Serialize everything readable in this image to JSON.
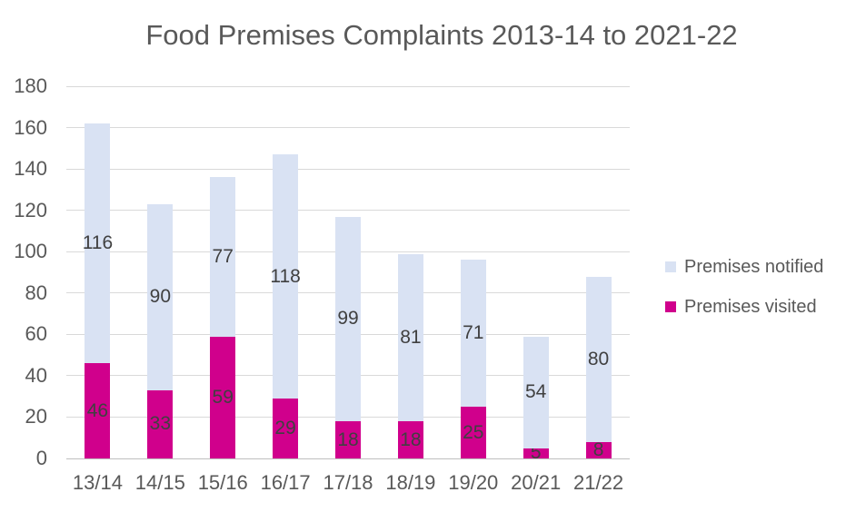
{
  "title": "Food Premises Complaints 2013-14 to 2021-22",
  "chart_data": {
    "type": "bar",
    "stacked": true,
    "title": "Food Premises Complaints 2013-14 to 2021-22",
    "categories": [
      "13/14",
      "14/15",
      "15/16",
      "16/17",
      "17/18",
      "18/19",
      "19/20",
      "20/21",
      "21/22"
    ],
    "series": [
      {
        "name": "Premises visited",
        "color": "#d0008c",
        "values": [
          46,
          33,
          59,
          29,
          18,
          18,
          25,
          5,
          8
        ]
      },
      {
        "name": "Premises notified",
        "color": "#d9e2f3",
        "values": [
          116,
          90,
          77,
          118,
          99,
          81,
          71,
          54,
          80
        ]
      }
    ],
    "ylim": [
      0,
      180
    ],
    "yticks": [
      0,
      20,
      40,
      60,
      80,
      100,
      120,
      140,
      160,
      180
    ],
    "xlabel": "",
    "ylabel": "",
    "grid": "horizontal",
    "data_labels": "centered-in-segment",
    "legend_position": "right",
    "legend": [
      {
        "label": "Premises notified",
        "color": "#d9e2f3"
      },
      {
        "label": "Premises visited",
        "color": "#d0008c"
      }
    ],
    "colors": {
      "title_text": "#595959",
      "axis_text": "#595959",
      "data_label_text": "#404040",
      "gridline": "#d9d9d9",
      "axis_line": "#bfbfbf",
      "background": "#ffffff"
    }
  }
}
